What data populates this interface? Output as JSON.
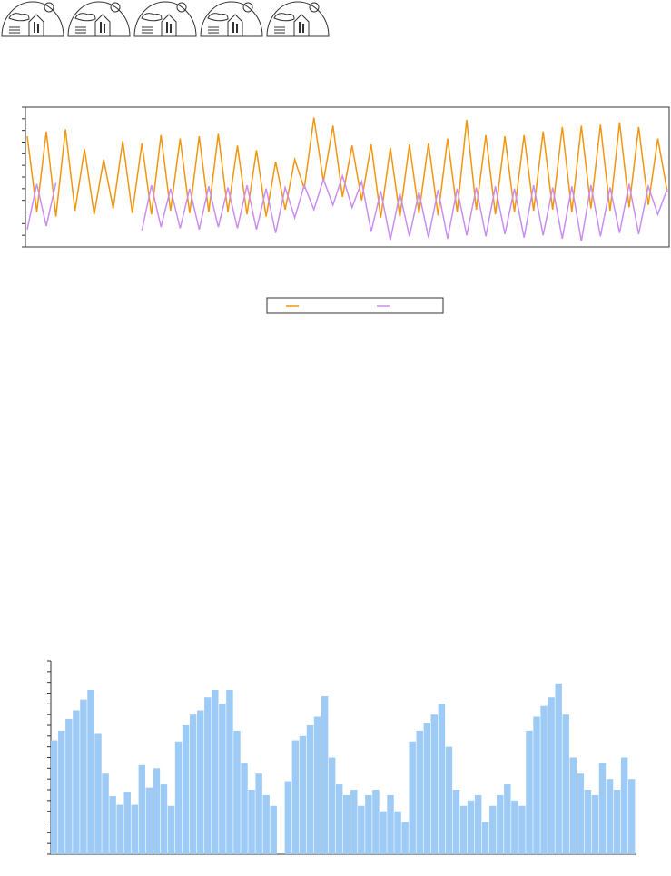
{
  "chart_data": [
    {
      "type": "line",
      "series": [
        {
          "color": "#f0960f",
          "values": [
            9.5,
            3.0,
            9.9,
            2.6,
            10.1,
            3.1,
            8.4,
            2.8,
            7.5,
            3.3,
            9.1,
            2.9,
            8.9,
            2.8,
            9.6,
            3.1,
            9.3,
            2.9,
            9.5,
            3.0,
            9.7,
            3.0,
            8.7,
            2.8,
            8.3,
            2.6,
            7.3,
            3.2,
            7.5,
            5.0,
            11.1,
            5.6,
            10.4,
            4.3,
            8.7,
            4.0,
            8.8,
            2.5,
            8.5,
            2.6,
            8.8,
            2.9,
            8.9,
            2.7,
            9.3,
            3.0,
            10.9,
            3.2,
            9.6,
            2.8,
            9.5,
            3.0,
            9.6,
            3.1,
            9.9,
            3.2,
            10.3,
            3.0,
            10.4,
            3.3,
            10.5,
            3.1,
            10.7,
            3.4,
            10.3,
            3.6,
            9.3,
            4.7
          ]
        },
        {
          "color": "#c98ef0",
          "values": [
            1.5,
            5.4,
            1.8,
            5.5,
            null,
            null,
            null,
            null,
            null,
            null,
            null,
            null,
            1.4,
            5.3,
            1.7,
            5.0,
            1.6,
            5.0,
            1.5,
            5.2,
            1.7,
            5.1,
            1.6,
            5.3,
            1.5,
            5.0,
            1.2,
            5.1,
            2.5,
            5.3,
            3.2,
            5.8,
            3.6,
            6.1,
            3.4,
            5.6,
            1.3,
            4.8,
            0.6,
            4.6,
            0.9,
            4.7,
            0.8,
            4.9,
            0.7,
            5.0,
            1.0,
            5.1,
            0.9,
            5.2,
            1.1,
            5.0,
            0.8,
            5.3,
            1.0,
            5.1,
            0.7,
            5.2,
            0.5,
            5.3,
            0.9,
            5.1,
            1.2,
            5.4,
            1.1,
            5.2,
            2.8,
            5.0
          ]
        }
      ],
      "ylim": [
        0,
        12
      ],
      "yticks": [
        0,
        1,
        2,
        3,
        4,
        5,
        6,
        7,
        8,
        9,
        10,
        11,
        12
      ]
    },
    {
      "type": "bar",
      "color": "#9ecbf5",
      "values": [
        10.6,
        11.5,
        12.6,
        13.4,
        14.4,
        15.3,
        11.2,
        7.5,
        5.4,
        4.6,
        5.8,
        4.6,
        8.3,
        6.2,
        8.0,
        6.5,
        4.5,
        10.5,
        12.0,
        13.0,
        13.4,
        14.6,
        15.3,
        14.0,
        15.3,
        11.5,
        8.5,
        6.0,
        7.5,
        5.5,
        4.5,
        null,
        6.8,
        10.6,
        11.0,
        12.0,
        12.8,
        14.7,
        9.0,
        6.5,
        5.5,
        6.0,
        4.5,
        5.5,
        6.0,
        4.0,
        5.5,
        4.0,
        3.0,
        10.5,
        11.5,
        12.2,
        13.0,
        14.0,
        10.0,
        6.0,
        4.5,
        5.0,
        5.5,
        3.0,
        4.5,
        5.5,
        6.5,
        5.0,
        4.5,
        11.5,
        12.8,
        13.8,
        14.6,
        15.9,
        13.0,
        9.0,
        7.5,
        6.0,
        5.5,
        8.5,
        7.0,
        6.0,
        9.0,
        7.0
      ],
      "ylim": [
        0,
        18
      ],
      "yticks": [
        0,
        1,
        2,
        3,
        4,
        5,
        6,
        7,
        8,
        9,
        10,
        11,
        12,
        13,
        14,
        15,
        16,
        17,
        18
      ]
    }
  ]
}
